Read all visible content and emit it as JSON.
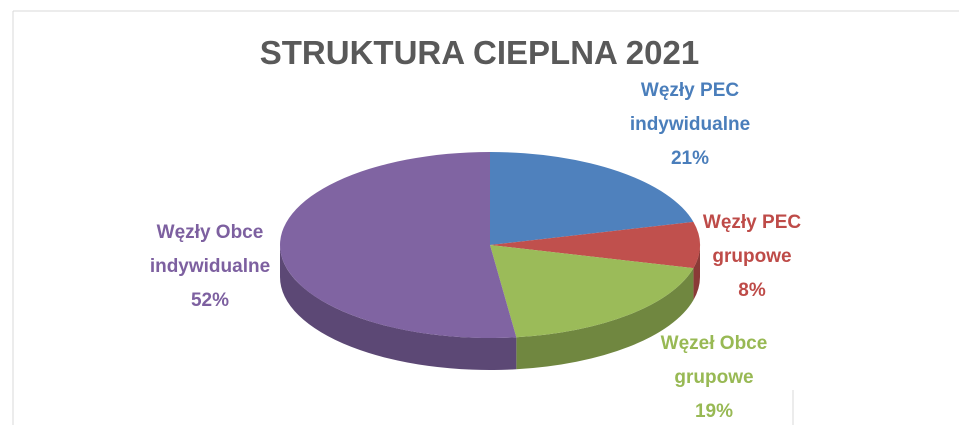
{
  "chart_data": {
    "type": "pie",
    "title": "STRUKTURA CIEPLNA 2021",
    "categories": [
      "Węzły PEC indywidualne",
      "Węzły PEC grupowe",
      "Węzeł Obce grupowe",
      "Węzły Obce indywidualne"
    ],
    "values": [
      21,
      8,
      19,
      52
    ],
    "value_labels": [
      "21%",
      "8%",
      "19%",
      "52%"
    ],
    "colors": [
      "#4f81bd",
      "#c0504d",
      "#9bbb59",
      "#8064a2"
    ]
  }
}
